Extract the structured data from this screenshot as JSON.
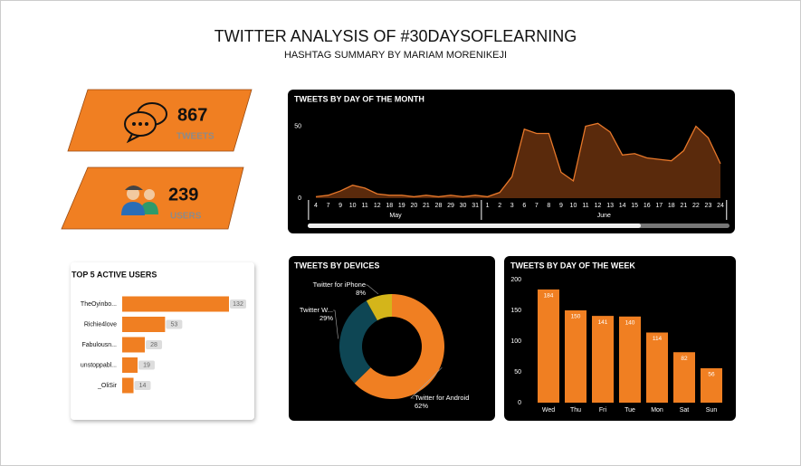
{
  "header": {
    "title": "TWITTER ANALYSIS OF #30DAYSOFLEARNING",
    "subtitle": "HASHTAG SUMMARY BY MARIAM MORENIKEJI"
  },
  "kpis": [
    {
      "value": 867,
      "label": "TWEETS"
    },
    {
      "value": 239,
      "label": "USERS"
    }
  ],
  "chart_data": [
    {
      "type": "area",
      "title": "TWEETS BY DAY OF THE MONTH",
      "color": "#e8782a",
      "fill": "#5a2a0c",
      "categories": [
        "4",
        "7",
        "9",
        "10",
        "11",
        "12",
        "18",
        "19",
        "20",
        "21",
        "28",
        "29",
        "30",
        "31",
        "1",
        "2",
        "3",
        "6",
        "7",
        "8",
        "9",
        "10",
        "11",
        "12",
        "13",
        "14",
        "15",
        "16",
        "17",
        "18",
        "21",
        "22",
        "23",
        "24"
      ],
      "category_groups": [
        {
          "label": "May",
          "size": 14
        },
        {
          "label": "June",
          "size": 20
        }
      ],
      "values": [
        1,
        2,
        5,
        9,
        7,
        3,
        2,
        2,
        1,
        2,
        1,
        2,
        1,
        2,
        1,
        4,
        15,
        48,
        45,
        45,
        18,
        12,
        50,
        52,
        46,
        30,
        31,
        28,
        27,
        26,
        33,
        50,
        42,
        24
      ],
      "ylim": [
        0,
        56
      ],
      "yticks": [
        0,
        50
      ]
    },
    {
      "type": "bar",
      "orientation": "horizontal",
      "title": "TOP 5 ACTIVE USERS",
      "color": "#f07f22",
      "categories": [
        "TheOyinbo...",
        "Richie4love",
        "Fabulousn...",
        "unstoppabl...",
        "_OliSir"
      ],
      "values": [
        132,
        53,
        28,
        19,
        14
      ]
    },
    {
      "type": "donut",
      "title": "TWEETS BY DEVICES",
      "categories": [
        "Twitter for Android",
        "Twitter W...",
        "Twitter for iPhone"
      ],
      "values": [
        62,
        29,
        8
      ],
      "value_labels": [
        "62%",
        "29%",
        "8%"
      ],
      "colors": [
        "#f07f22",
        "#0e4654",
        "#d4b51a"
      ]
    },
    {
      "type": "bar",
      "title": "TWEETS BY DAY OF  THE WEEK",
      "color": "#f07f22",
      "categories": [
        "Wed",
        "Thu",
        "Fri",
        "Tue",
        "Mon",
        "Sat",
        "Sun"
      ],
      "values": [
        184,
        150,
        141,
        140,
        114,
        82,
        56
      ],
      "ylim": [
        0,
        200
      ],
      "yticks": [
        0,
        50,
        100,
        150,
        200
      ]
    }
  ]
}
